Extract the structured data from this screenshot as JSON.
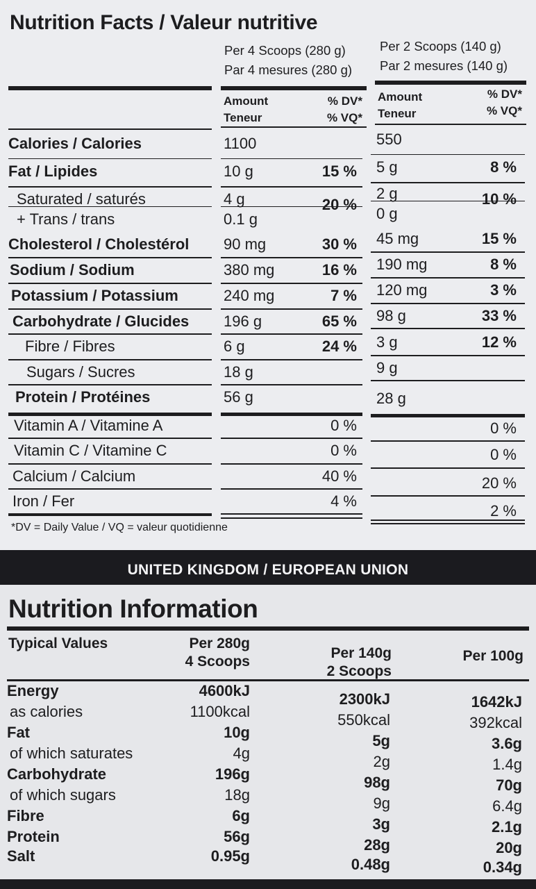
{
  "canada": {
    "title": "Nutrition Facts / Valeur nutritive",
    "serving1_en": "Per 4 Scoops (280 g)",
    "serving1_fr": "Par 4 mesures (280 g)",
    "serving2_en": "Per 2 Scoops (140 g)",
    "serving2_fr": "Par 2 mesures (140 g)",
    "amount_label": "Amount",
    "teneur_label": "Teneur",
    "dv_label": "% DV*",
    "vq_label": "% VQ*",
    "rows": [
      {
        "label": "Calories / Calories",
        "a1": "1100",
        "d1": "",
        "a2": "550",
        "d2": ""
      },
      {
        "label": "Fat / Lipides",
        "a1": "10 g",
        "d1": "15 %",
        "a2": "5 g",
        "d2": "8 %"
      },
      {
        "label": "Saturated / saturés",
        "a1": "4 g",
        "d1": "20 %",
        "a2": "2 g",
        "d2": "10 %"
      },
      {
        "label": "+ Trans / trans",
        "a1": "0.1 g",
        "d1": "",
        "a2": "0 g",
        "d2": ""
      },
      {
        "label": "Cholesterol / Cholestérol",
        "a1": "90 mg",
        "d1": "30 %",
        "a2": "45 mg",
        "d2": "15 %"
      },
      {
        "label": "Sodium / Sodium",
        "a1": "380 mg",
        "d1": "16 %",
        "a2": "190 mg",
        "d2": "8 %"
      },
      {
        "label": "Potassium / Potassium",
        "a1": "240 mg",
        "d1": "7 %",
        "a2": "120 mg",
        "d2": "3 %"
      },
      {
        "label": "Carbohydrate / Glucides",
        "a1": "196 g",
        "d1": "65 %",
        "a2": "98 g",
        "d2": "33 %"
      },
      {
        "label": "Fibre / Fibres",
        "a1": "6 g",
        "d1": "24 %",
        "a2": "3 g",
        "d2": "12 %"
      },
      {
        "label": "Sugars / Sucres",
        "a1": "18 g",
        "d1": "",
        "a2": "9 g",
        "d2": ""
      },
      {
        "label": "Protein / Protéines",
        "a1": "56 g",
        "d1": "",
        "a2": "28 g",
        "d2": ""
      },
      {
        "label": "Vitamin A / Vitamine A",
        "a1": "",
        "d1": "0 %",
        "a2": "",
        "d2": "0 %"
      },
      {
        "label": "Vitamin C / Vitamine C",
        "a1": "",
        "d1": "0 %",
        "a2": "",
        "d2": "0 %"
      },
      {
        "label": "Calcium / Calcium",
        "a1": "",
        "d1": "40 %",
        "a2": "",
        "d2": "20 %"
      },
      {
        "label": "Iron / Fer",
        "a1": "",
        "d1": "4 %",
        "a2": "",
        "d2": "2 %"
      }
    ],
    "footnote": "*DV = Daily Value / VQ = valeur quotidienne"
  },
  "uk": {
    "band": "UNITED KINGDOM / EUROPEAN UNION",
    "title": "Nutrition Information",
    "typical": "Typical Values",
    "col1_a": "Per 280g",
    "col1_b": "4 Scoops",
    "col2_a": "Per 140g",
    "col2_b": "2 Scoops",
    "col3": "Per 100g",
    "rows": [
      {
        "label": "Energy",
        "v1": "4600kJ",
        "v2": "2300kJ",
        "v3": "1642kJ"
      },
      {
        "label": "as calories",
        "v1": "1100kcal",
        "v2": "550kcal",
        "v3": "392kcal"
      },
      {
        "label": "Fat",
        "v1": "10g",
        "v2": "5g",
        "v3": "3.6g"
      },
      {
        "label": "of which saturates",
        "v1": "4g",
        "v2": "2g",
        "v3": "1.4g"
      },
      {
        "label": "Carbohydrate",
        "v1": "196g",
        "v2": "98g",
        "v3": "70g"
      },
      {
        "label": "of which sugars",
        "v1": "18g",
        "v2": "9g",
        "v3": "6.4g"
      },
      {
        "label": "Fibre",
        "v1": "6g",
        "v2": "3g",
        "v3": "2.1g"
      },
      {
        "label": "Protein",
        "v1": "56g",
        "v2": "28g",
        "v3": "20g"
      },
      {
        "label": "Salt",
        "v1": "0.95g",
        "v2": "0.48g",
        "v3": "0.34g"
      }
    ]
  }
}
